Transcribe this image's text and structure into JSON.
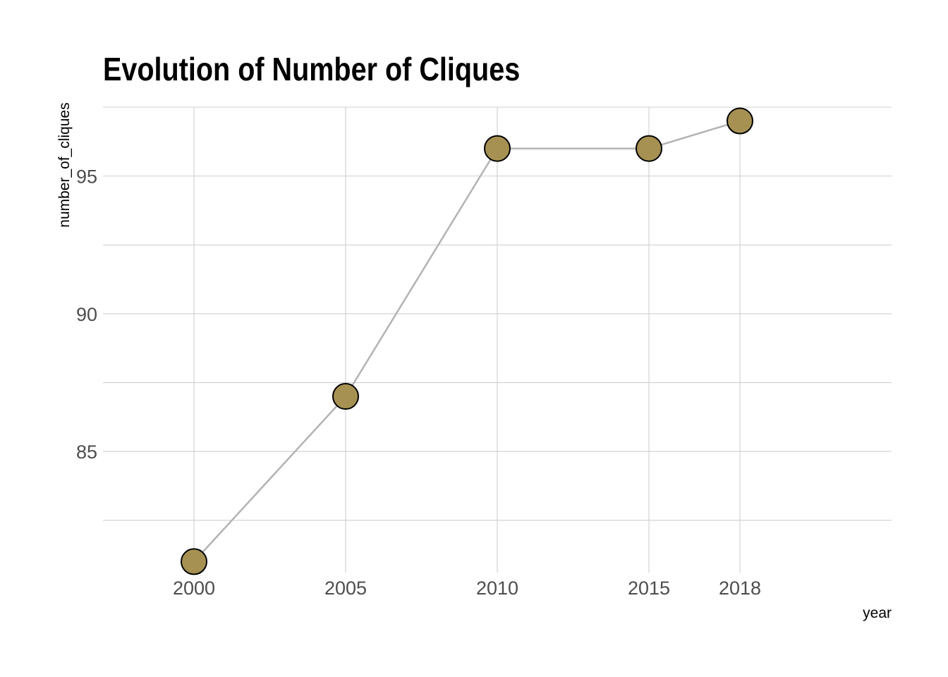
{
  "chart_data": {
    "type": "line",
    "title": "Evolution of Number of Cliques",
    "xlabel": "year",
    "ylabel": "number_of_cliques",
    "x": [
      2000,
      2005,
      2010,
      2015,
      2018
    ],
    "x_tick_labels": [
      "2000",
      "2005",
      "2010",
      "2015",
      "2018"
    ],
    "y_ticks": [
      85,
      90,
      95
    ],
    "y_tick_labels": [
      "85",
      "90",
      "95"
    ],
    "xlim": [
      1997,
      2023
    ],
    "ylim": [
      80.6,
      97.5
    ],
    "series": [
      {
        "values": [
          81,
          87,
          96,
          96,
          97
        ]
      }
    ],
    "grid": true,
    "line_color": "#b3b3b3",
    "point_fill": "#a69152",
    "point_stroke": "#000000"
  }
}
